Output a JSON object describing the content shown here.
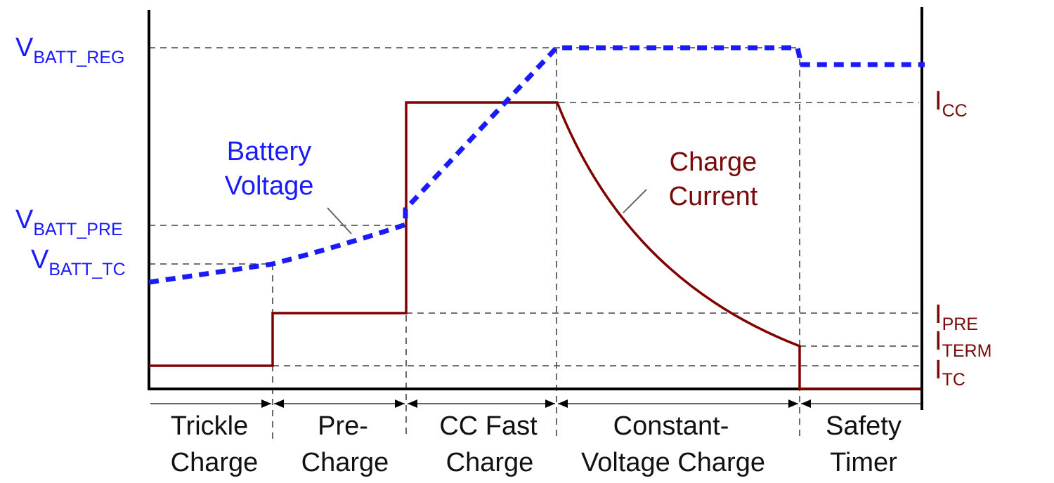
{
  "voltage_levels": [
    {
      "main": "V",
      "sub": "BATT_REG"
    },
    {
      "main": "V",
      "sub": "BATT_PRE"
    },
    {
      "main": "V",
      "sub": "BATT_TC"
    }
  ],
  "current_levels": [
    {
      "main": "I",
      "sub": "CC"
    },
    {
      "main": "I",
      "sub": "PRE"
    },
    {
      "main": "I",
      "sub": "TERM"
    },
    {
      "main": "I",
      "sub": "TC"
    }
  ],
  "curves": {
    "voltage": {
      "line1": "Battery",
      "line2": "Voltage",
      "color": "#1a1aff"
    },
    "current": {
      "line1": "Charge",
      "line2": "Current",
      "color": "#800000"
    }
  },
  "phases": [
    {
      "line1": "Trickle",
      "line2": "Charge"
    },
    {
      "line1": "Pre-",
      "line2": "Charge"
    },
    {
      "line1": "CC Fast",
      "line2": "Charge"
    },
    {
      "line1": "Constant-",
      "line2": "Voltage Charge"
    },
    {
      "line1": "Safety",
      "line2": "Timer"
    }
  ]
}
